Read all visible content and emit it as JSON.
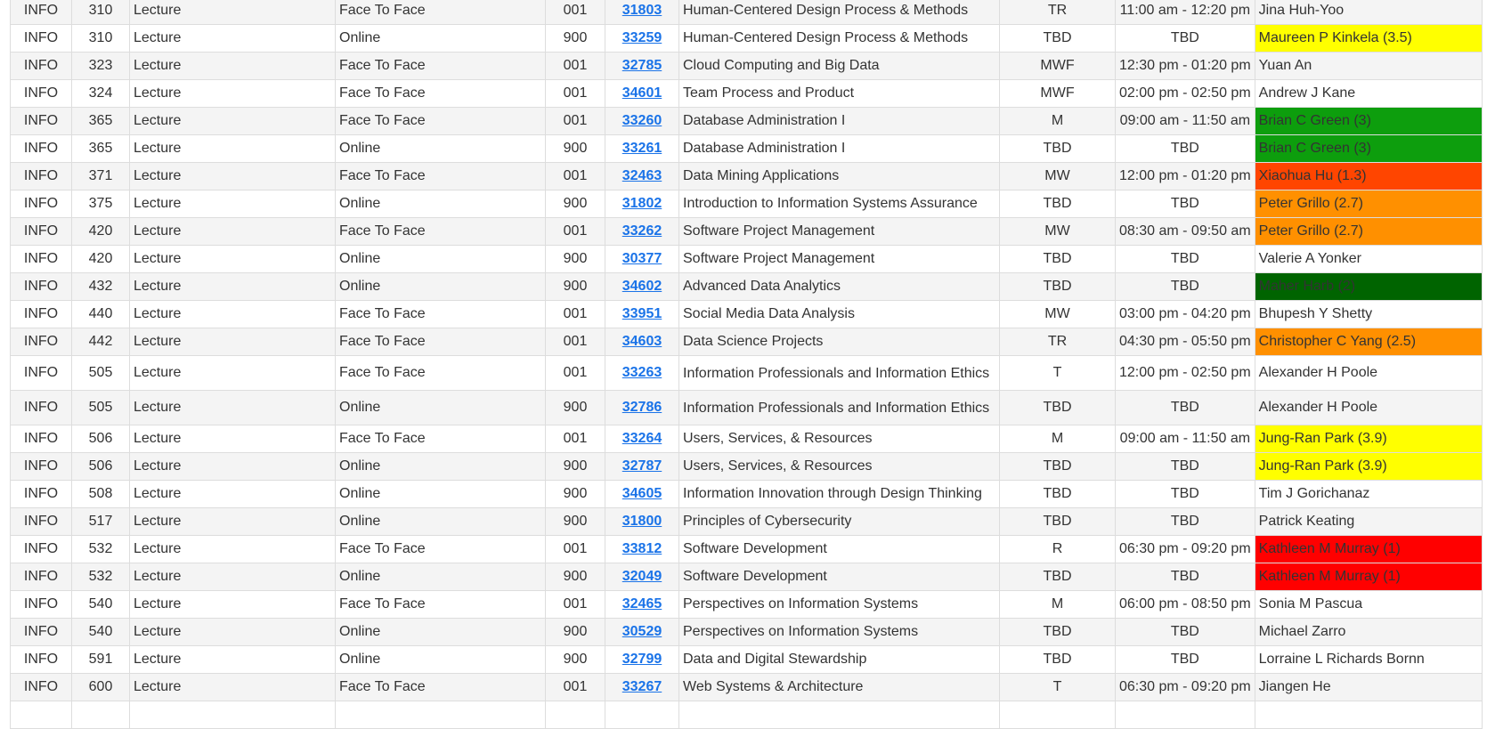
{
  "rows": [
    {
      "subject": "INFO",
      "number": "310",
      "component": "Lecture",
      "mode": "Face To Face",
      "section": "001",
      "class_nbr": "31803",
      "title": "Human-Centered Design Process & Methods",
      "days": "TR",
      "time": "11:00 am - 12:20 pm",
      "instructor": "Jina Huh-Yoo",
      "highlight": ""
    },
    {
      "subject": "INFO",
      "number": "310",
      "component": "Lecture",
      "mode": "Online",
      "section": "900",
      "class_nbr": "33259",
      "title": "Human-Centered Design Process & Methods",
      "days": "TBD",
      "time": "TBD",
      "instructor": "Maureen P Kinkela (3.5)",
      "highlight": "#ffff00"
    },
    {
      "subject": "INFO",
      "number": "323",
      "component": "Lecture",
      "mode": "Face To Face",
      "section": "001",
      "class_nbr": "32785",
      "title": "Cloud Computing and Big Data",
      "days": "MWF",
      "time": "12:30 pm - 01:20 pm",
      "instructor": "Yuan An",
      "highlight": ""
    },
    {
      "subject": "INFO",
      "number": "324",
      "component": "Lecture",
      "mode": "Face To Face",
      "section": "001",
      "class_nbr": "34601",
      "title": "Team Process and Product",
      "days": "MWF",
      "time": "02:00 pm - 02:50 pm",
      "instructor": "Andrew J Kane",
      "highlight": ""
    },
    {
      "subject": "INFO",
      "number": "365",
      "component": "Lecture",
      "mode": "Face To Face",
      "section": "001",
      "class_nbr": "33260",
      "title": "Database Administration I",
      "days": "M",
      "time": "09:00 am - 11:50 am",
      "instructor": "Brian C Green (3)",
      "highlight": "#0d9e0d"
    },
    {
      "subject": "INFO",
      "number": "365",
      "component": "Lecture",
      "mode": "Online",
      "section": "900",
      "class_nbr": "33261",
      "title": "Database Administration I",
      "days": "TBD",
      "time": "TBD",
      "instructor": "Brian C Green (3)",
      "highlight": "#0d9e0d"
    },
    {
      "subject": "INFO",
      "number": "371",
      "component": "Lecture",
      "mode": "Face To Face",
      "section": "001",
      "class_nbr": "32463",
      "title": "Data Mining Applications",
      "days": "MW",
      "time": "12:00 pm - 01:20 pm",
      "instructor": "Xiaohua Hu (1.3)",
      "highlight": "#ff4500"
    },
    {
      "subject": "INFO",
      "number": "375",
      "component": "Lecture",
      "mode": "Online",
      "section": "900",
      "class_nbr": "31802",
      "title": "Introduction to Information Systems Assurance",
      "days": "TBD",
      "time": "TBD",
      "instructor": "Peter Grillo (2.7)",
      "highlight": "#ff9000"
    },
    {
      "subject": "INFO",
      "number": "420",
      "component": "Lecture",
      "mode": "Face To Face",
      "section": "001",
      "class_nbr": "33262",
      "title": "Software Project Management",
      "days": "MW",
      "time": "08:30 am - 09:50 am",
      "instructor": "Peter Grillo (2.7)",
      "highlight": "#ff9000"
    },
    {
      "subject": "INFO",
      "number": "420",
      "component": "Lecture",
      "mode": "Online",
      "section": "900",
      "class_nbr": "30377",
      "title": "Software Project Management",
      "days": "TBD",
      "time": "TBD",
      "instructor": "Valerie A Yonker",
      "highlight": ""
    },
    {
      "subject": "INFO",
      "number": "432",
      "component": "Lecture",
      "mode": "Online",
      "section": "900",
      "class_nbr": "34602",
      "title": "Advanced Data Analytics",
      "days": "TBD",
      "time": "TBD",
      "instructor": "Maher Harb (2)",
      "highlight": "#006400"
    },
    {
      "subject": "INFO",
      "number": "440",
      "component": "Lecture",
      "mode": "Face To Face",
      "section": "001",
      "class_nbr": "33951",
      "title": "Social Media Data Analysis",
      "days": "MW",
      "time": "03:00 pm - 04:20 pm",
      "instructor": "Bhupesh Y Shetty",
      "highlight": ""
    },
    {
      "subject": "INFO",
      "number": "442",
      "component": "Lecture",
      "mode": "Face To Face",
      "section": "001",
      "class_nbr": "34603",
      "title": "Data Science Projects",
      "days": "TR",
      "time": "04:30 pm - 05:50 pm",
      "instructor": "Christopher C Yang (2.5)",
      "highlight": "#ff9000"
    },
    {
      "subject": "INFO",
      "number": "505",
      "component": "Lecture",
      "mode": "Face To Face",
      "section": "001",
      "class_nbr": "33263",
      "title": "Information Professionals and Information Ethics",
      "days": "T",
      "time": "12:00 pm - 02:50 pm",
      "instructor": "Alexander H Poole",
      "highlight": "",
      "tall": true
    },
    {
      "subject": "INFO",
      "number": "505",
      "component": "Lecture",
      "mode": "Online",
      "section": "900",
      "class_nbr": "32786",
      "title": "Information Professionals and Information Ethics",
      "days": "TBD",
      "time": "TBD",
      "instructor": "Alexander H Poole",
      "highlight": "",
      "tall": true
    },
    {
      "subject": "INFO",
      "number": "506",
      "component": "Lecture",
      "mode": "Face To Face",
      "section": "001",
      "class_nbr": "33264",
      "title": "Users, Services, & Resources",
      "days": "M",
      "time": "09:00 am - 11:50 am",
      "instructor": "Jung-Ran Park (3.9)",
      "highlight": "#ffff00"
    },
    {
      "subject": "INFO",
      "number": "506",
      "component": "Lecture",
      "mode": "Online",
      "section": "900",
      "class_nbr": "32787",
      "title": "Users, Services, & Resources",
      "days": "TBD",
      "time": "TBD",
      "instructor": "Jung-Ran Park (3.9)",
      "highlight": "#ffff00"
    },
    {
      "subject": "INFO",
      "number": "508",
      "component": "Lecture",
      "mode": "Online",
      "section": "900",
      "class_nbr": "34605",
      "title": "Information Innovation through Design Thinking",
      "days": "TBD",
      "time": "TBD",
      "instructor": "Tim J Gorichanaz",
      "highlight": ""
    },
    {
      "subject": "INFO",
      "number": "517",
      "component": "Lecture",
      "mode": "Online",
      "section": "900",
      "class_nbr": "31800",
      "title": "Principles of Cybersecurity",
      "days": "TBD",
      "time": "TBD",
      "instructor": "Patrick Keating",
      "highlight": ""
    },
    {
      "subject": "INFO",
      "number": "532",
      "component": "Lecture",
      "mode": "Face To Face",
      "section": "001",
      "class_nbr": "33812",
      "title": "Software Development",
      "days": "R",
      "time": "06:30 pm - 09:20 pm",
      "instructor": "Kathleen M Murray (1)",
      "highlight": "#ff0000"
    },
    {
      "subject": "INFO",
      "number": "532",
      "component": "Lecture",
      "mode": "Online",
      "section": "900",
      "class_nbr": "32049",
      "title": "Software Development",
      "days": "TBD",
      "time": "TBD",
      "instructor": "Kathleen M Murray (1)",
      "highlight": "#ff0000"
    },
    {
      "subject": "INFO",
      "number": "540",
      "component": "Lecture",
      "mode": "Face To Face",
      "section": "001",
      "class_nbr": "32465",
      "title": "Perspectives on Information Systems",
      "days": "M",
      "time": "06:00 pm - 08:50 pm",
      "instructor": "Sonia M Pascua",
      "highlight": ""
    },
    {
      "subject": "INFO",
      "number": "540",
      "component": "Lecture",
      "mode": "Online",
      "section": "900",
      "class_nbr": "30529",
      "title": "Perspectives on Information Systems",
      "days": "TBD",
      "time": "TBD",
      "instructor": "Michael Zarro",
      "highlight": ""
    },
    {
      "subject": "INFO",
      "number": "591",
      "component": "Lecture",
      "mode": "Online",
      "section": "900",
      "class_nbr": "32799",
      "title": "Data and Digital Stewardship",
      "days": "TBD",
      "time": "TBD",
      "instructor": "Lorraine L Richards Bornn",
      "highlight": ""
    },
    {
      "subject": "INFO",
      "number": "600",
      "component": "Lecture",
      "mode": "Face To Face",
      "section": "001",
      "class_nbr": "33267",
      "title": "Web Systems & Architecture",
      "days": "T",
      "time": "06:30 pm - 09:20 pm",
      "instructor": "Jiangen He",
      "highlight": ""
    },
    {
      "subject": "",
      "number": "",
      "component": "",
      "mode": "",
      "section": "",
      "class_nbr": "",
      "title": "",
      "days": "",
      "time": "",
      "instructor": "",
      "highlight": ""
    }
  ]
}
